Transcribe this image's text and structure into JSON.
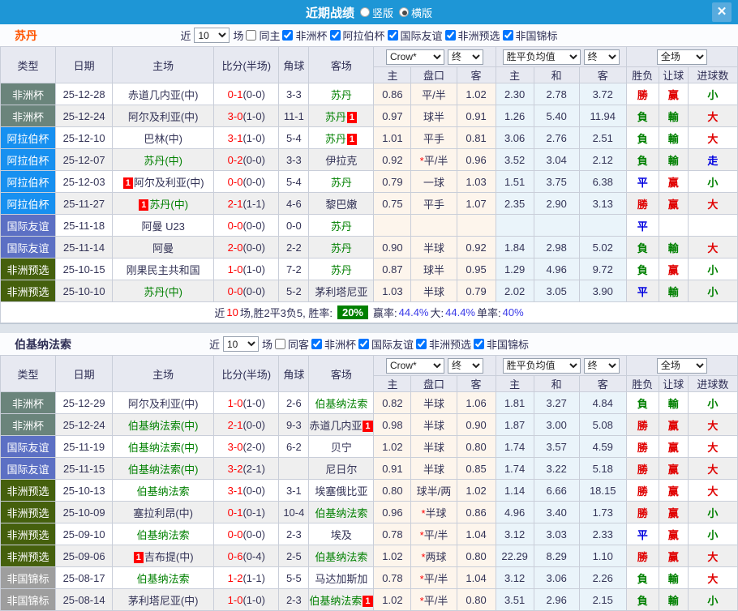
{
  "titlebar": {
    "title": "近期战绩",
    "radios": [
      {
        "label": "竖版",
        "checked": false
      },
      {
        "label": "横版",
        "checked": true
      }
    ],
    "close": "✕"
  },
  "table_header": {
    "type": "类型",
    "date": "日期",
    "home": "主场",
    "score": "比分(半场)",
    "corner": "角球",
    "away": "客场",
    "crow_select": "Crow*",
    "final_select": "终",
    "avg_select": "胜平负均值",
    "full_select": "全场",
    "sub": [
      "主",
      "盘口",
      "客",
      "主",
      "和",
      "客",
      "胜负",
      "让球",
      "进球数"
    ]
  },
  "colors": {
    "accent": "#1e96d6",
    "type_colors": {
      "非洲杯": "#6a847b",
      "阿拉伯杯": "#1790f0",
      "国际友谊": "#5c70c4",
      "非洲预选": "#45600d",
      "非国锦标": "#9e9e9e"
    },
    "result_colors": {
      "勝": "#e00000",
      "負": "#008000",
      "平": "#0000e0",
      "赢": "#e00000",
      "輸": "#008000",
      "大": "#e00000",
      "小": "#008000",
      "走": "#0000e0"
    },
    "green_badge": "#008000"
  },
  "sections": [
    {
      "team": "苏丹",
      "team_color": "#ff5500",
      "filter": {
        "near": "近",
        "count": "10",
        "games": "场",
        "same_label": "同主",
        "same_checked": false,
        "comps": [
          "非洲杯",
          "阿拉伯杯",
          "国际友谊",
          "非洲预选",
          "非国锦标"
        ]
      },
      "rows": [
        {
          "type": "非洲杯",
          "date": "25-12-28",
          "home": "赤道几内亚(中)",
          "home_green": false,
          "home_badge": false,
          "score_ft": "0-1",
          "score_ht": "(0-0)",
          "corner": "3-3",
          "away": "苏丹",
          "away_green": true,
          "away_badge": false,
          "odds": [
            "0.86",
            "平/半",
            "1.02"
          ],
          "avg": [
            "2.30",
            "2.78",
            "3.72"
          ],
          "results": [
            "勝",
            "赢",
            "小"
          ]
        },
        {
          "type": "非洲杯",
          "date": "25-12-24",
          "home": "阿尔及利亚(中)",
          "home_green": false,
          "home_badge": false,
          "score_ft": "3-0",
          "score_ht": "(1-0)",
          "corner": "11-1",
          "away": "苏丹",
          "away_green": true,
          "away_badge": true,
          "odds": [
            "0.97",
            "球半",
            "0.91"
          ],
          "avg": [
            "1.26",
            "5.40",
            "11.94"
          ],
          "results": [
            "負",
            "輸",
            "大"
          ]
        },
        {
          "type": "阿拉伯杯",
          "date": "25-12-10",
          "home": "巴林(中)",
          "home_green": false,
          "home_badge": false,
          "score_ft": "3-1",
          "score_ht": "(1-0)",
          "corner": "5-4",
          "away": "苏丹",
          "away_green": true,
          "away_badge": true,
          "odds": [
            "1.01",
            "平手",
            "0.81"
          ],
          "avg": [
            "3.06",
            "2.76",
            "2.51"
          ],
          "results": [
            "負",
            "輸",
            "大"
          ]
        },
        {
          "type": "阿拉伯杯",
          "date": "25-12-07",
          "home": "苏丹(中)",
          "home_green": true,
          "home_badge": false,
          "score_ft": "0-2",
          "score_ht": "(0-0)",
          "corner": "3-3",
          "away": "伊拉克",
          "away_green": false,
          "away_badge": false,
          "odds": [
            "0.92",
            "*平/半",
            "0.96"
          ],
          "avg": [
            "3.52",
            "3.04",
            "2.12"
          ],
          "results": [
            "負",
            "輸",
            "走"
          ]
        },
        {
          "type": "阿拉伯杯",
          "date": "25-12-03",
          "home": "阿尔及利亚(中)",
          "home_green": false,
          "home_badge": true,
          "score_ft": "0-0",
          "score_ht": "(0-0)",
          "corner": "5-4",
          "away": "苏丹",
          "away_green": true,
          "away_badge": false,
          "odds": [
            "0.79",
            "一球",
            "1.03"
          ],
          "avg": [
            "1.51",
            "3.75",
            "6.38"
          ],
          "results": [
            "平",
            "赢",
            "小"
          ]
        },
        {
          "type": "阿拉伯杯",
          "date": "25-11-27",
          "home": "苏丹(中)",
          "home_green": true,
          "home_badge": true,
          "score_ft": "2-1",
          "score_ht": "(1-1)",
          "corner": "4-6",
          "away": "黎巴嫩",
          "away_green": false,
          "away_badge": false,
          "odds": [
            "0.75",
            "平手",
            "1.07"
          ],
          "avg": [
            "2.35",
            "2.90",
            "3.13"
          ],
          "results": [
            "勝",
            "赢",
            "大"
          ]
        },
        {
          "type": "国际友谊",
          "date": "25-11-18",
          "home": "阿曼 U23",
          "home_green": false,
          "home_badge": false,
          "score_ft": "0-0",
          "score_ht": "(0-0)",
          "corner": "0-0",
          "away": "苏丹",
          "away_green": true,
          "away_badge": false,
          "odds": [
            "",
            "",
            ""
          ],
          "avg": [
            "",
            "",
            ""
          ],
          "results": [
            "平",
            "",
            ""
          ]
        },
        {
          "type": "国际友谊",
          "date": "25-11-14",
          "home": "阿曼",
          "home_green": false,
          "home_badge": false,
          "score_ft": "2-0",
          "score_ht": "(0-0)",
          "corner": "2-2",
          "away": "苏丹",
          "away_green": true,
          "away_badge": false,
          "odds": [
            "0.90",
            "半球",
            "0.92"
          ],
          "avg": [
            "1.84",
            "2.98",
            "5.02"
          ],
          "results": [
            "負",
            "輸",
            "大"
          ]
        },
        {
          "type": "非洲预选",
          "date": "25-10-15",
          "home": "刚果民主共和国",
          "home_green": false,
          "home_badge": false,
          "score_ft": "1-0",
          "score_ht": "(1-0)",
          "corner": "7-2",
          "away": "苏丹",
          "away_green": true,
          "away_badge": false,
          "odds": [
            "0.87",
            "球半",
            "0.95"
          ],
          "avg": [
            "1.29",
            "4.96",
            "9.72"
          ],
          "results": [
            "負",
            "赢",
            "小"
          ]
        },
        {
          "type": "非洲预选",
          "date": "25-10-10",
          "home": "苏丹(中)",
          "home_green": true,
          "home_badge": false,
          "score_ft": "0-0",
          "score_ht": "(0-0)",
          "corner": "5-2",
          "away": "茅利塔尼亚",
          "away_green": false,
          "away_badge": false,
          "odds": [
            "1.03",
            "半球",
            "0.79"
          ],
          "avg": [
            "2.02",
            "3.05",
            "3.90"
          ],
          "results": [
            "平",
            "輸",
            "小"
          ]
        }
      ],
      "summary": {
        "prefix": "近",
        "count": "10",
        "mid": "场,胜2平3负5, 胜率:",
        "rate": "20%",
        "items": [
          {
            "label": "赢率:",
            "value": "44.4%"
          },
          {
            "label": "大:",
            "value": "44.4%"
          },
          {
            "label": "单率:",
            "value": "40%"
          }
        ]
      }
    },
    {
      "team": "伯基纳法索",
      "team_color": "#2f2f55",
      "filter": {
        "near": "近",
        "count": "10",
        "games": "场",
        "same_label": "同客",
        "same_checked": false,
        "comps": [
          "非洲杯",
          "国际友谊",
          "非洲预选",
          "非国锦标"
        ]
      },
      "rows": [
        {
          "type": "非洲杯",
          "date": "25-12-29",
          "home": "阿尔及利亚(中)",
          "home_green": false,
          "home_badge": false,
          "score_ft": "1-0",
          "score_ht": "(1-0)",
          "corner": "2-6",
          "away": "伯基纳法索",
          "away_green": true,
          "away_badge": false,
          "odds": [
            "0.82",
            "半球",
            "1.06"
          ],
          "avg": [
            "1.81",
            "3.27",
            "4.84"
          ],
          "results": [
            "負",
            "輸",
            "小"
          ]
        },
        {
          "type": "非洲杯",
          "date": "25-12-24",
          "home": "伯基纳法索(中)",
          "home_green": true,
          "home_badge": false,
          "score_ft": "2-1",
          "score_ht": "(0-0)",
          "corner": "9-3",
          "away": "赤道几内亚",
          "away_green": false,
          "away_badge": true,
          "odds": [
            "0.98",
            "半球",
            "0.90"
          ],
          "avg": [
            "1.87",
            "3.00",
            "5.08"
          ],
          "results": [
            "勝",
            "赢",
            "大"
          ]
        },
        {
          "type": "国际友谊",
          "date": "25-11-19",
          "home": "伯基纳法索(中)",
          "home_green": true,
          "home_badge": false,
          "score_ft": "3-0",
          "score_ht": "(2-0)",
          "corner": "6-2",
          "away": "贝宁",
          "away_green": false,
          "away_badge": false,
          "odds": [
            "1.02",
            "半球",
            "0.80"
          ],
          "avg": [
            "1.74",
            "3.57",
            "4.59"
          ],
          "results": [
            "勝",
            "赢",
            "大"
          ]
        },
        {
          "type": "国际友谊",
          "date": "25-11-15",
          "home": "伯基纳法索(中)",
          "home_green": true,
          "home_badge": false,
          "score_ft": "3-2",
          "score_ht": "(2-1)",
          "corner": "",
          "away": "尼日尔",
          "away_green": false,
          "away_badge": false,
          "odds": [
            "0.91",
            "半球",
            "0.85"
          ],
          "avg": [
            "1.74",
            "3.22",
            "5.18"
          ],
          "results": [
            "勝",
            "赢",
            "大"
          ]
        },
        {
          "type": "非洲预选",
          "date": "25-10-13",
          "home": "伯基纳法索",
          "home_green": true,
          "home_badge": false,
          "score_ft": "3-1",
          "score_ht": "(0-0)",
          "corner": "3-1",
          "away": "埃塞俄比亚",
          "away_green": false,
          "away_badge": false,
          "odds": [
            "0.80",
            "球半/两",
            "1.02"
          ],
          "avg": [
            "1.14",
            "6.66",
            "18.15"
          ],
          "results": [
            "勝",
            "赢",
            "大"
          ]
        },
        {
          "type": "非洲预选",
          "date": "25-10-09",
          "home": "塞拉利昂(中)",
          "home_green": false,
          "home_badge": false,
          "score_ft": "0-1",
          "score_ht": "(0-1)",
          "corner": "10-4",
          "away": "伯基纳法索",
          "away_green": true,
          "away_badge": false,
          "odds": [
            "0.96",
            "*半球",
            "0.86"
          ],
          "avg": [
            "4.96",
            "3.40",
            "1.73"
          ],
          "results": [
            "勝",
            "赢",
            "小"
          ]
        },
        {
          "type": "非洲预选",
          "date": "25-09-10",
          "home": "伯基纳法索",
          "home_green": true,
          "home_badge": false,
          "score_ft": "0-0",
          "score_ht": "(0-0)",
          "corner": "2-3",
          "away": "埃及",
          "away_green": false,
          "away_badge": false,
          "odds": [
            "0.78",
            "*平/半",
            "1.04"
          ],
          "avg": [
            "3.12",
            "3.03",
            "2.33"
          ],
          "results": [
            "平",
            "赢",
            "小"
          ]
        },
        {
          "type": "非洲预选",
          "date": "25-09-06",
          "home": "吉布提(中)",
          "home_green": false,
          "home_badge": true,
          "score_ft": "0-6",
          "score_ht": "(0-4)",
          "corner": "2-5",
          "away": "伯基纳法索",
          "away_green": true,
          "away_badge": false,
          "odds": [
            "1.02",
            "*两球",
            "0.80"
          ],
          "avg": [
            "22.29",
            "8.29",
            "1.10"
          ],
          "results": [
            "勝",
            "赢",
            "大"
          ]
        },
        {
          "type": "非国锦标",
          "date": "25-08-17",
          "home": "伯基纳法索",
          "home_green": true,
          "home_badge": false,
          "score_ft": "1-2",
          "score_ht": "(1-1)",
          "corner": "5-5",
          "away": "马达加斯加",
          "away_green": false,
          "away_badge": false,
          "odds": [
            "0.78",
            "*平/半",
            "1.04"
          ],
          "avg": [
            "3.12",
            "3.06",
            "2.26"
          ],
          "results": [
            "負",
            "輸",
            "大"
          ]
        },
        {
          "type": "非国锦标",
          "date": "25-08-14",
          "home": "茅利塔尼亚(中)",
          "home_green": false,
          "home_badge": false,
          "score_ft": "1-0",
          "score_ht": "(1-0)",
          "corner": "2-3",
          "away": "伯基纳法索",
          "away_green": true,
          "away_badge": true,
          "odds": [
            "1.02",
            "*平/半",
            "0.80"
          ],
          "avg": [
            "3.51",
            "2.96",
            "2.15"
          ],
          "results": [
            "負",
            "輸",
            "小"
          ]
        }
      ],
      "summary": null
    }
  ]
}
